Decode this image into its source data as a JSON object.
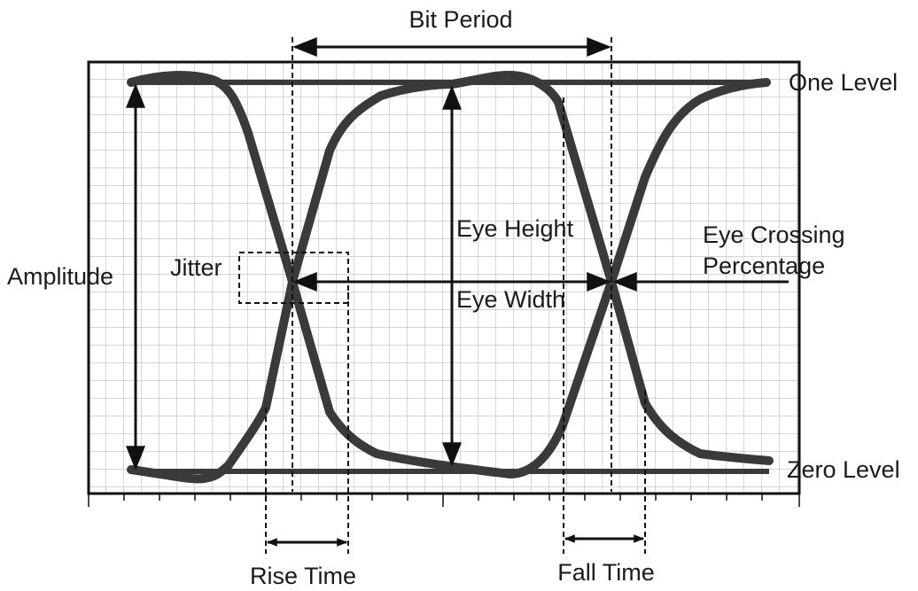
{
  "labels": {
    "bit_period": "Bit Period",
    "one_level": "One Level",
    "zero_level": "Zero Level",
    "amplitude": "Amplitude",
    "jitter": "Jitter",
    "eye_height": "Eye Height",
    "eye_width": "Eye Width",
    "eye_crossing": [
      "Eye Crossing",
      "Percentage"
    ],
    "rise_time": "Rise Time",
    "fall_time": "Fall Time"
  }
}
